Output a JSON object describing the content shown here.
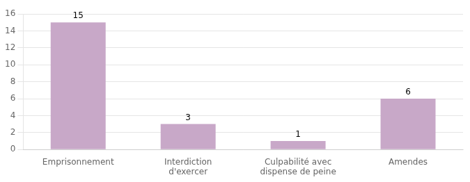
{
  "chart_data": {
    "type": "bar",
    "categories": [
      "Emprisonnement",
      "Interdiction\nd'exercer",
      "Culpabilité avec\ndispense de peine",
      "Amendes"
    ],
    "values": [
      15,
      3,
      1,
      6
    ],
    "color": "#c8a8c8",
    "ylim": [
      0,
      16
    ],
    "yticks": [
      0,
      2,
      4,
      6,
      8,
      10,
      12,
      14,
      16
    ],
    "grid": true,
    "data_labels": true
  }
}
